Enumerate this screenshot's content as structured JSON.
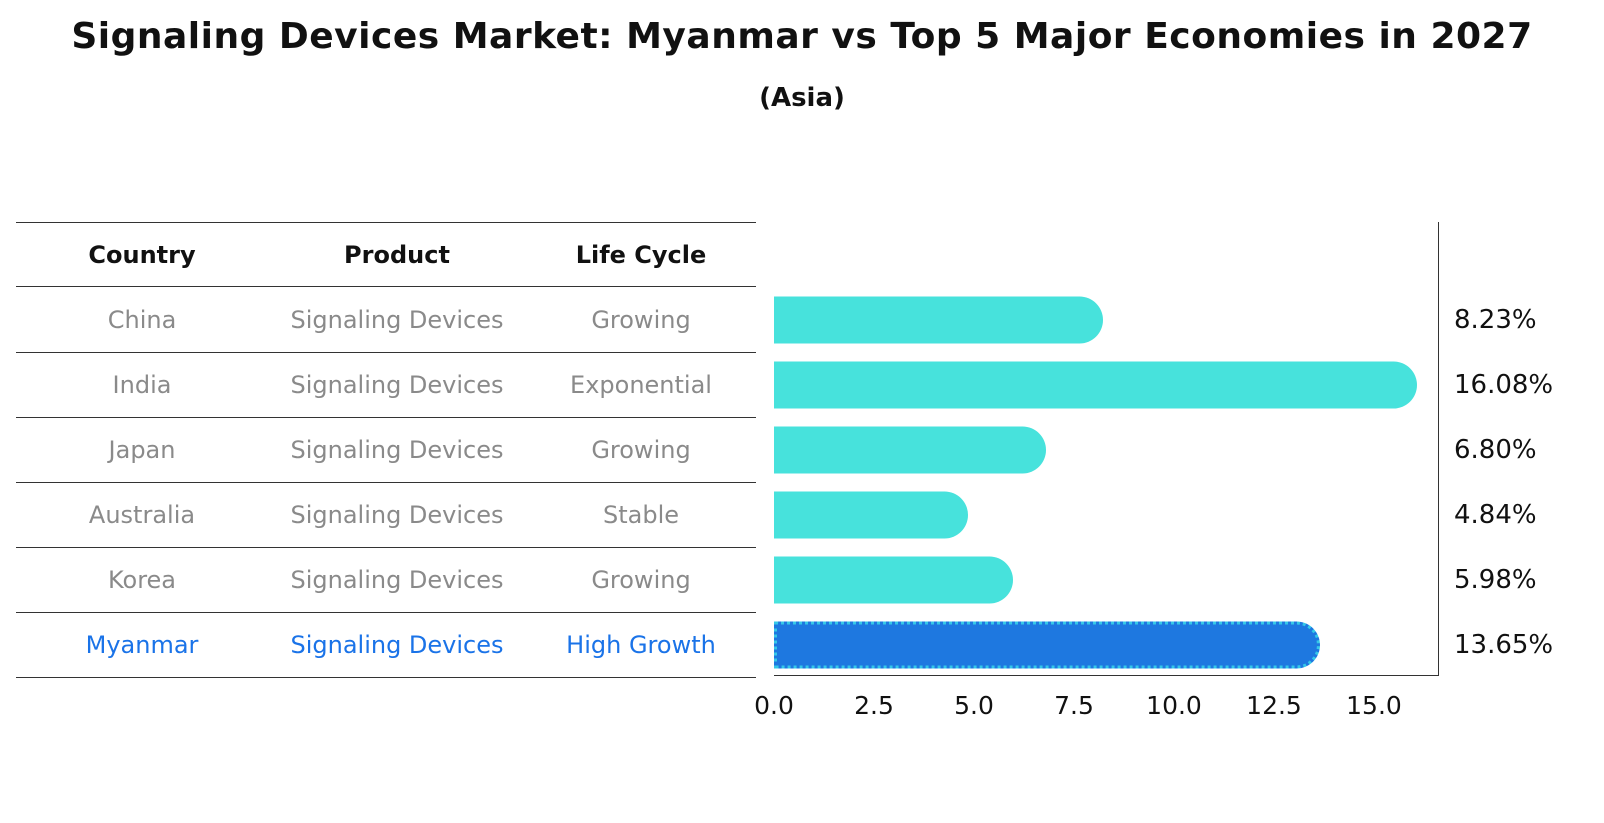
{
  "title": "Signaling Devices Market: Myanmar vs Top 5 Major Economies in 2027",
  "subtitle": "(Asia)",
  "table": {
    "headers": [
      "Country",
      "Product",
      "Life Cycle"
    ],
    "rows": [
      {
        "country": "China",
        "product": "Signaling Devices",
        "life_cycle": "Growing"
      },
      {
        "country": "India",
        "product": "Signaling Devices",
        "life_cycle": "Exponential"
      },
      {
        "country": "Japan",
        "product": "Signaling Devices",
        "life_cycle": "Growing"
      },
      {
        "country": "Australia",
        "product": "Signaling Devices",
        "life_cycle": "Stable"
      },
      {
        "country": "Korea",
        "product": "Signaling Devices",
        "life_cycle": "Growing"
      },
      {
        "country": "Myanmar",
        "product": "Signaling Devices",
        "life_cycle": "High Growth"
      }
    ]
  },
  "chart_data": {
    "type": "bar",
    "orientation": "horizontal",
    "title": "Signaling Devices Market: Myanmar vs Top 5 Major Economies in 2027 (Asia)",
    "categories": [
      "China",
      "India",
      "Japan",
      "Australia",
      "Korea",
      "Myanmar"
    ],
    "values": [
      8.23,
      16.08,
      6.8,
      4.84,
      5.98,
      13.65
    ],
    "value_labels": [
      "8.23%",
      "16.08%",
      "6.80%",
      "4.84%",
      "5.98%",
      "13.65%"
    ],
    "xlim": [
      0,
      16.6
    ],
    "xticks": [
      "0.0",
      "2.5",
      "5.0",
      "7.5",
      "10.0",
      "12.5",
      "15.0"
    ],
    "xtick_values": [
      0,
      2.5,
      5,
      7.5,
      10,
      12.5,
      15
    ],
    "grid": false,
    "legend": "none",
    "bar_color": "#47e2dc",
    "highlight_color": "#1e78e0",
    "highlight_index": 5,
    "highlight_text_color": "#1a73e8"
  }
}
